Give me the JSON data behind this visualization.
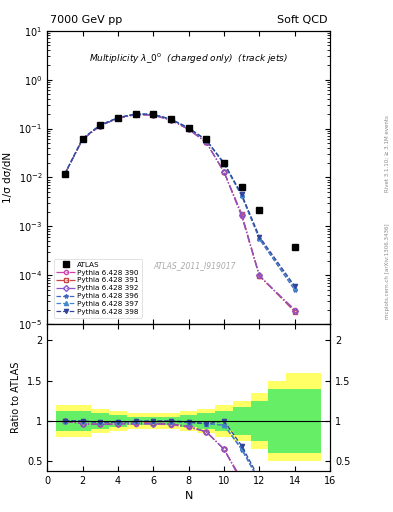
{
  "title_left": "7000 GeV pp",
  "title_right": "Soft QCD",
  "plot_title": "Multiplicity $\\lambda\\_0^0$  (charged only)  (track jets)",
  "xlabel": "N",
  "ylabel_main": "1/σ dσ/dN",
  "ylabel_ratio": "Ratio to ATLAS",
  "watermark": "ATLAS_2011_I919017",
  "right_label1": "Rivet 3.1.10; ≥ 3.1M events",
  "right_label2": "mcplots.cern.ch [arXiv:1306.3436]",
  "atlas_N": [
    1,
    2,
    3,
    4,
    5,
    6,
    7,
    8,
    9,
    10,
    11,
    12,
    14
  ],
  "atlas_y": [
    0.0118,
    0.062,
    0.12,
    0.168,
    0.2,
    0.195,
    0.155,
    0.104,
    0.06,
    0.02,
    0.0065,
    0.0022,
    0.00038
  ],
  "mc_N": [
    1,
    2,
    3,
    4,
    5,
    6,
    7,
    8,
    9,
    10,
    11,
    12,
    14
  ],
  "series": [
    {
      "label": "Pythia 6.428 390",
      "color": "#cc44aa",
      "linestyle": "-.",
      "marker": "o",
      "fillstyle": "none",
      "y": [
        0.0118,
        0.06,
        0.115,
        0.162,
        0.192,
        0.188,
        0.148,
        0.096,
        0.052,
        0.013,
        0.0016,
        9.5e-05,
        2e-05
      ]
    },
    {
      "label": "Pythia 6.428 391",
      "color": "#cc4444",
      "linestyle": "-.",
      "marker": "s",
      "fillstyle": "none",
      "y": [
        0.0118,
        0.06,
        0.115,
        0.162,
        0.197,
        0.19,
        0.15,
        0.097,
        0.052,
        0.013,
        0.0018,
        9.8e-05,
        1.8e-05
      ]
    },
    {
      "label": "Pythia 6.428 392",
      "color": "#8855cc",
      "linestyle": "-.",
      "marker": "D",
      "fillstyle": "none",
      "y": [
        0.0118,
        0.06,
        0.115,
        0.162,
        0.194,
        0.189,
        0.149,
        0.097,
        0.052,
        0.013,
        0.0017,
        0.0001,
        1.9e-05
      ]
    },
    {
      "label": "Pythia 6.428 396",
      "color": "#4466bb",
      "linestyle": "--",
      "marker": "*",
      "fillstyle": "full",
      "y": [
        0.0118,
        0.062,
        0.118,
        0.166,
        0.199,
        0.194,
        0.154,
        0.102,
        0.058,
        0.019,
        0.0042,
        0.00055,
        5e-05
      ]
    },
    {
      "label": "Pythia 6.428 397",
      "color": "#4488cc",
      "linestyle": "--",
      "marker": "^",
      "fillstyle": "full",
      "y": [
        0.0118,
        0.062,
        0.118,
        0.166,
        0.199,
        0.195,
        0.155,
        0.103,
        0.058,
        0.019,
        0.0043,
        0.00058,
        5.5e-05
      ]
    },
    {
      "label": "Pythia 6.428 398",
      "color": "#334499",
      "linestyle": "--",
      "marker": "v",
      "fillstyle": "full",
      "y": [
        0.0118,
        0.062,
        0.118,
        0.166,
        0.199,
        0.195,
        0.155,
        0.103,
        0.058,
        0.02,
        0.0045,
        0.00062,
        6e-05
      ]
    }
  ],
  "band_yellow": {
    "xlo": 0.5,
    "xhi": 15.5,
    "ylo": 0.8,
    "yhi": 1.2
  },
  "band_green": {
    "xlo": 0.5,
    "xhi": 15.5,
    "ylo": 0.9,
    "yhi": 1.1
  },
  "band_yellow_steps": {
    "x": [
      0.5,
      1.5,
      2.5,
      3.5,
      4.5,
      5.5,
      6.5,
      7.5,
      8.5,
      9.5,
      10.5,
      11.5,
      12.5,
      13.5,
      14.5,
      15.5
    ],
    "lo": [
      0.8,
      0.8,
      0.85,
      0.88,
      0.9,
      0.9,
      0.9,
      0.88,
      0.85,
      0.8,
      0.75,
      0.65,
      0.5,
      0.5,
      0.5,
      0.5
    ],
    "hi": [
      1.2,
      1.2,
      1.15,
      1.12,
      1.1,
      1.1,
      1.1,
      1.12,
      1.15,
      1.2,
      1.25,
      1.35,
      1.5,
      1.6,
      1.6,
      1.6
    ]
  },
  "band_green_steps": {
    "x": [
      0.5,
      1.5,
      2.5,
      3.5,
      4.5,
      5.5,
      6.5,
      7.5,
      8.5,
      9.5,
      10.5,
      11.5,
      12.5,
      13.5,
      14.5,
      15.5
    ],
    "lo": [
      0.88,
      0.88,
      0.9,
      0.93,
      0.95,
      0.95,
      0.95,
      0.93,
      0.9,
      0.88,
      0.83,
      0.75,
      0.6,
      0.6,
      0.6,
      0.6
    ],
    "hi": [
      1.12,
      1.12,
      1.1,
      1.07,
      1.05,
      1.05,
      1.05,
      1.07,
      1.1,
      1.12,
      1.17,
      1.25,
      1.4,
      1.4,
      1.4,
      1.4
    ]
  },
  "ylim_main": [
    1e-05,
    10
  ],
  "ylim_ratio": [
    0.38,
    2.2
  ],
  "yticks_ratio": [
    0.5,
    1.0,
    1.5,
    2.0
  ],
  "xlim": [
    0,
    16
  ]
}
